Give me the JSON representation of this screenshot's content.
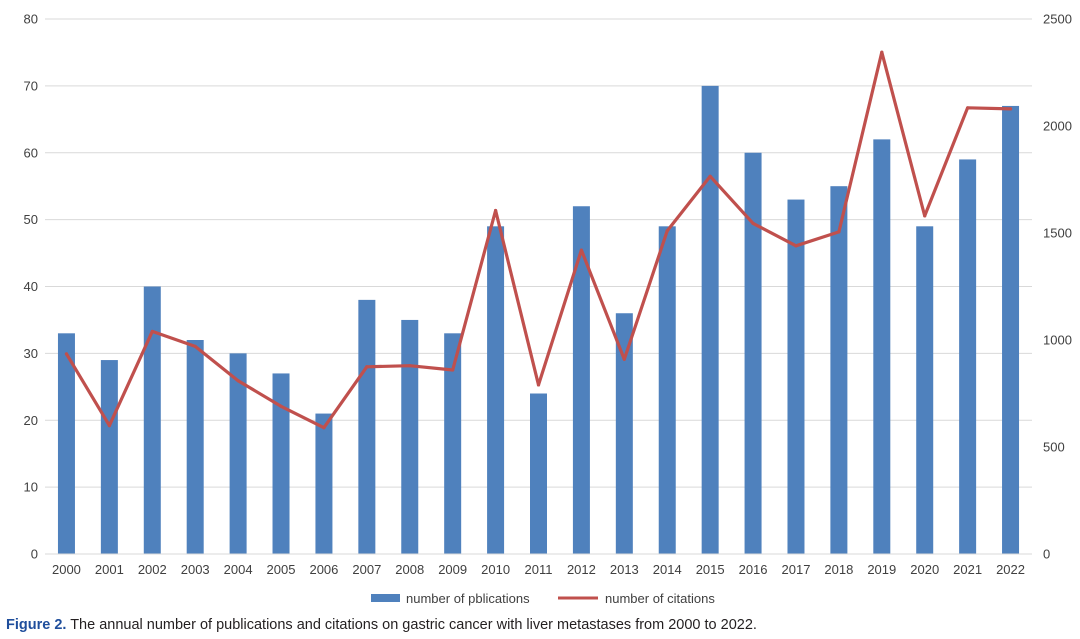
{
  "caption": {
    "label": "Figure 2.",
    "text": " The annual number of publications and citations on gastric cancer with liver metastases from 2000 to 2022."
  },
  "chart_data": {
    "type": "bar",
    "categories": [
      "2000",
      "2001",
      "2002",
      "2003",
      "2004",
      "2005",
      "2006",
      "2007",
      "2008",
      "2009",
      "2010",
      "2011",
      "2012",
      "2013",
      "2014",
      "2015",
      "2016",
      "2017",
      "2018",
      "2019",
      "2020",
      "2021",
      "2022"
    ],
    "series": [
      {
        "name": "number of pblications",
        "type": "bar",
        "axis": "left",
        "color": "#4f81bd",
        "values": [
          33,
          29,
          40,
          32,
          30,
          27,
          21,
          38,
          35,
          33,
          49,
          24,
          52,
          36,
          49,
          70,
          60,
          53,
          55,
          62,
          49,
          59,
          67
        ]
      },
      {
        "name": "number of citations",
        "type": "line",
        "axis": "right",
        "color": "#c0504d",
        "values": [
          935,
          600,
          1040,
          970,
          810,
          690,
          590,
          875,
          880,
          860,
          1605,
          790,
          1420,
          910,
          1510,
          1765,
          1545,
          1440,
          1505,
          2345,
          1580,
          2085,
          2080
        ]
      }
    ],
    "y_left": {
      "min": 0,
      "max": 80,
      "ticks": [
        0,
        10,
        20,
        30,
        40,
        50,
        60,
        70,
        80
      ]
    },
    "y_right": {
      "min": 0,
      "max": 2500,
      "ticks": [
        0,
        500,
        1000,
        1500,
        2000,
        2500
      ]
    },
    "grid": true,
    "legend": "bottom-center"
  }
}
